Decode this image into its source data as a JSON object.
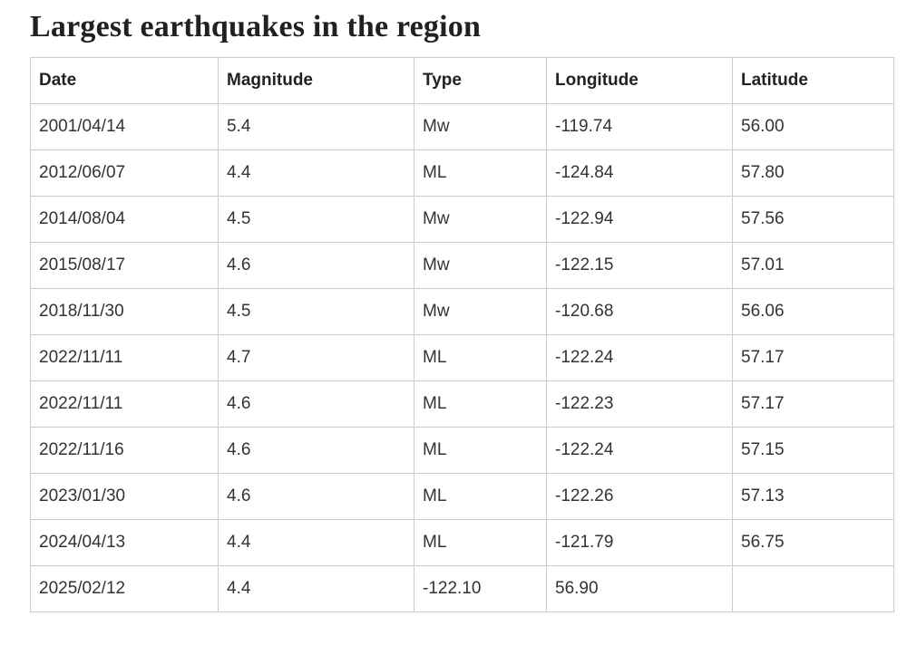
{
  "page": {
    "title": "Largest earthquakes in the region"
  },
  "chart_data": {
    "type": "table",
    "title": "Largest earthquakes in the region",
    "columns": [
      "Date",
      "Magnitude",
      "Type",
      "Longitude",
      "Latitude"
    ],
    "rows": [
      [
        "2001/04/14",
        "5.4",
        "Mw",
        "-119.74",
        "56.00"
      ],
      [
        "2012/06/07",
        "4.4",
        "ML",
        "-124.84",
        "57.80"
      ],
      [
        "2014/08/04",
        "4.5",
        "Mw",
        "-122.94",
        "57.56"
      ],
      [
        "2015/08/17",
        "4.6",
        "Mw",
        "-122.15",
        "57.01"
      ],
      [
        "2018/11/30",
        "4.5",
        "Mw",
        "-120.68",
        "56.06"
      ],
      [
        "2022/11/11",
        "4.7",
        "ML",
        "-122.24",
        "57.17"
      ],
      [
        "2022/11/11",
        "4.6",
        "ML",
        "-122.23",
        "57.17"
      ],
      [
        "2022/11/16",
        "4.6",
        "ML",
        "-122.24",
        "57.15"
      ],
      [
        "2023/01/30",
        "4.6",
        "ML",
        "-122.26",
        "57.13"
      ],
      [
        "2024/04/13",
        "4.4",
        "ML",
        "-121.79",
        "56.75"
      ],
      [
        "2025/02/12",
        "4.4",
        "-122.10",
        "56.90",
        ""
      ]
    ],
    "layout": {
      "grid": true,
      "header_row": true
    },
    "colors": {
      "border": "#cccccc",
      "title_text": "#212121",
      "header_text": "#222222",
      "cell_text": "#333333",
      "background": "#ffffff"
    }
  }
}
